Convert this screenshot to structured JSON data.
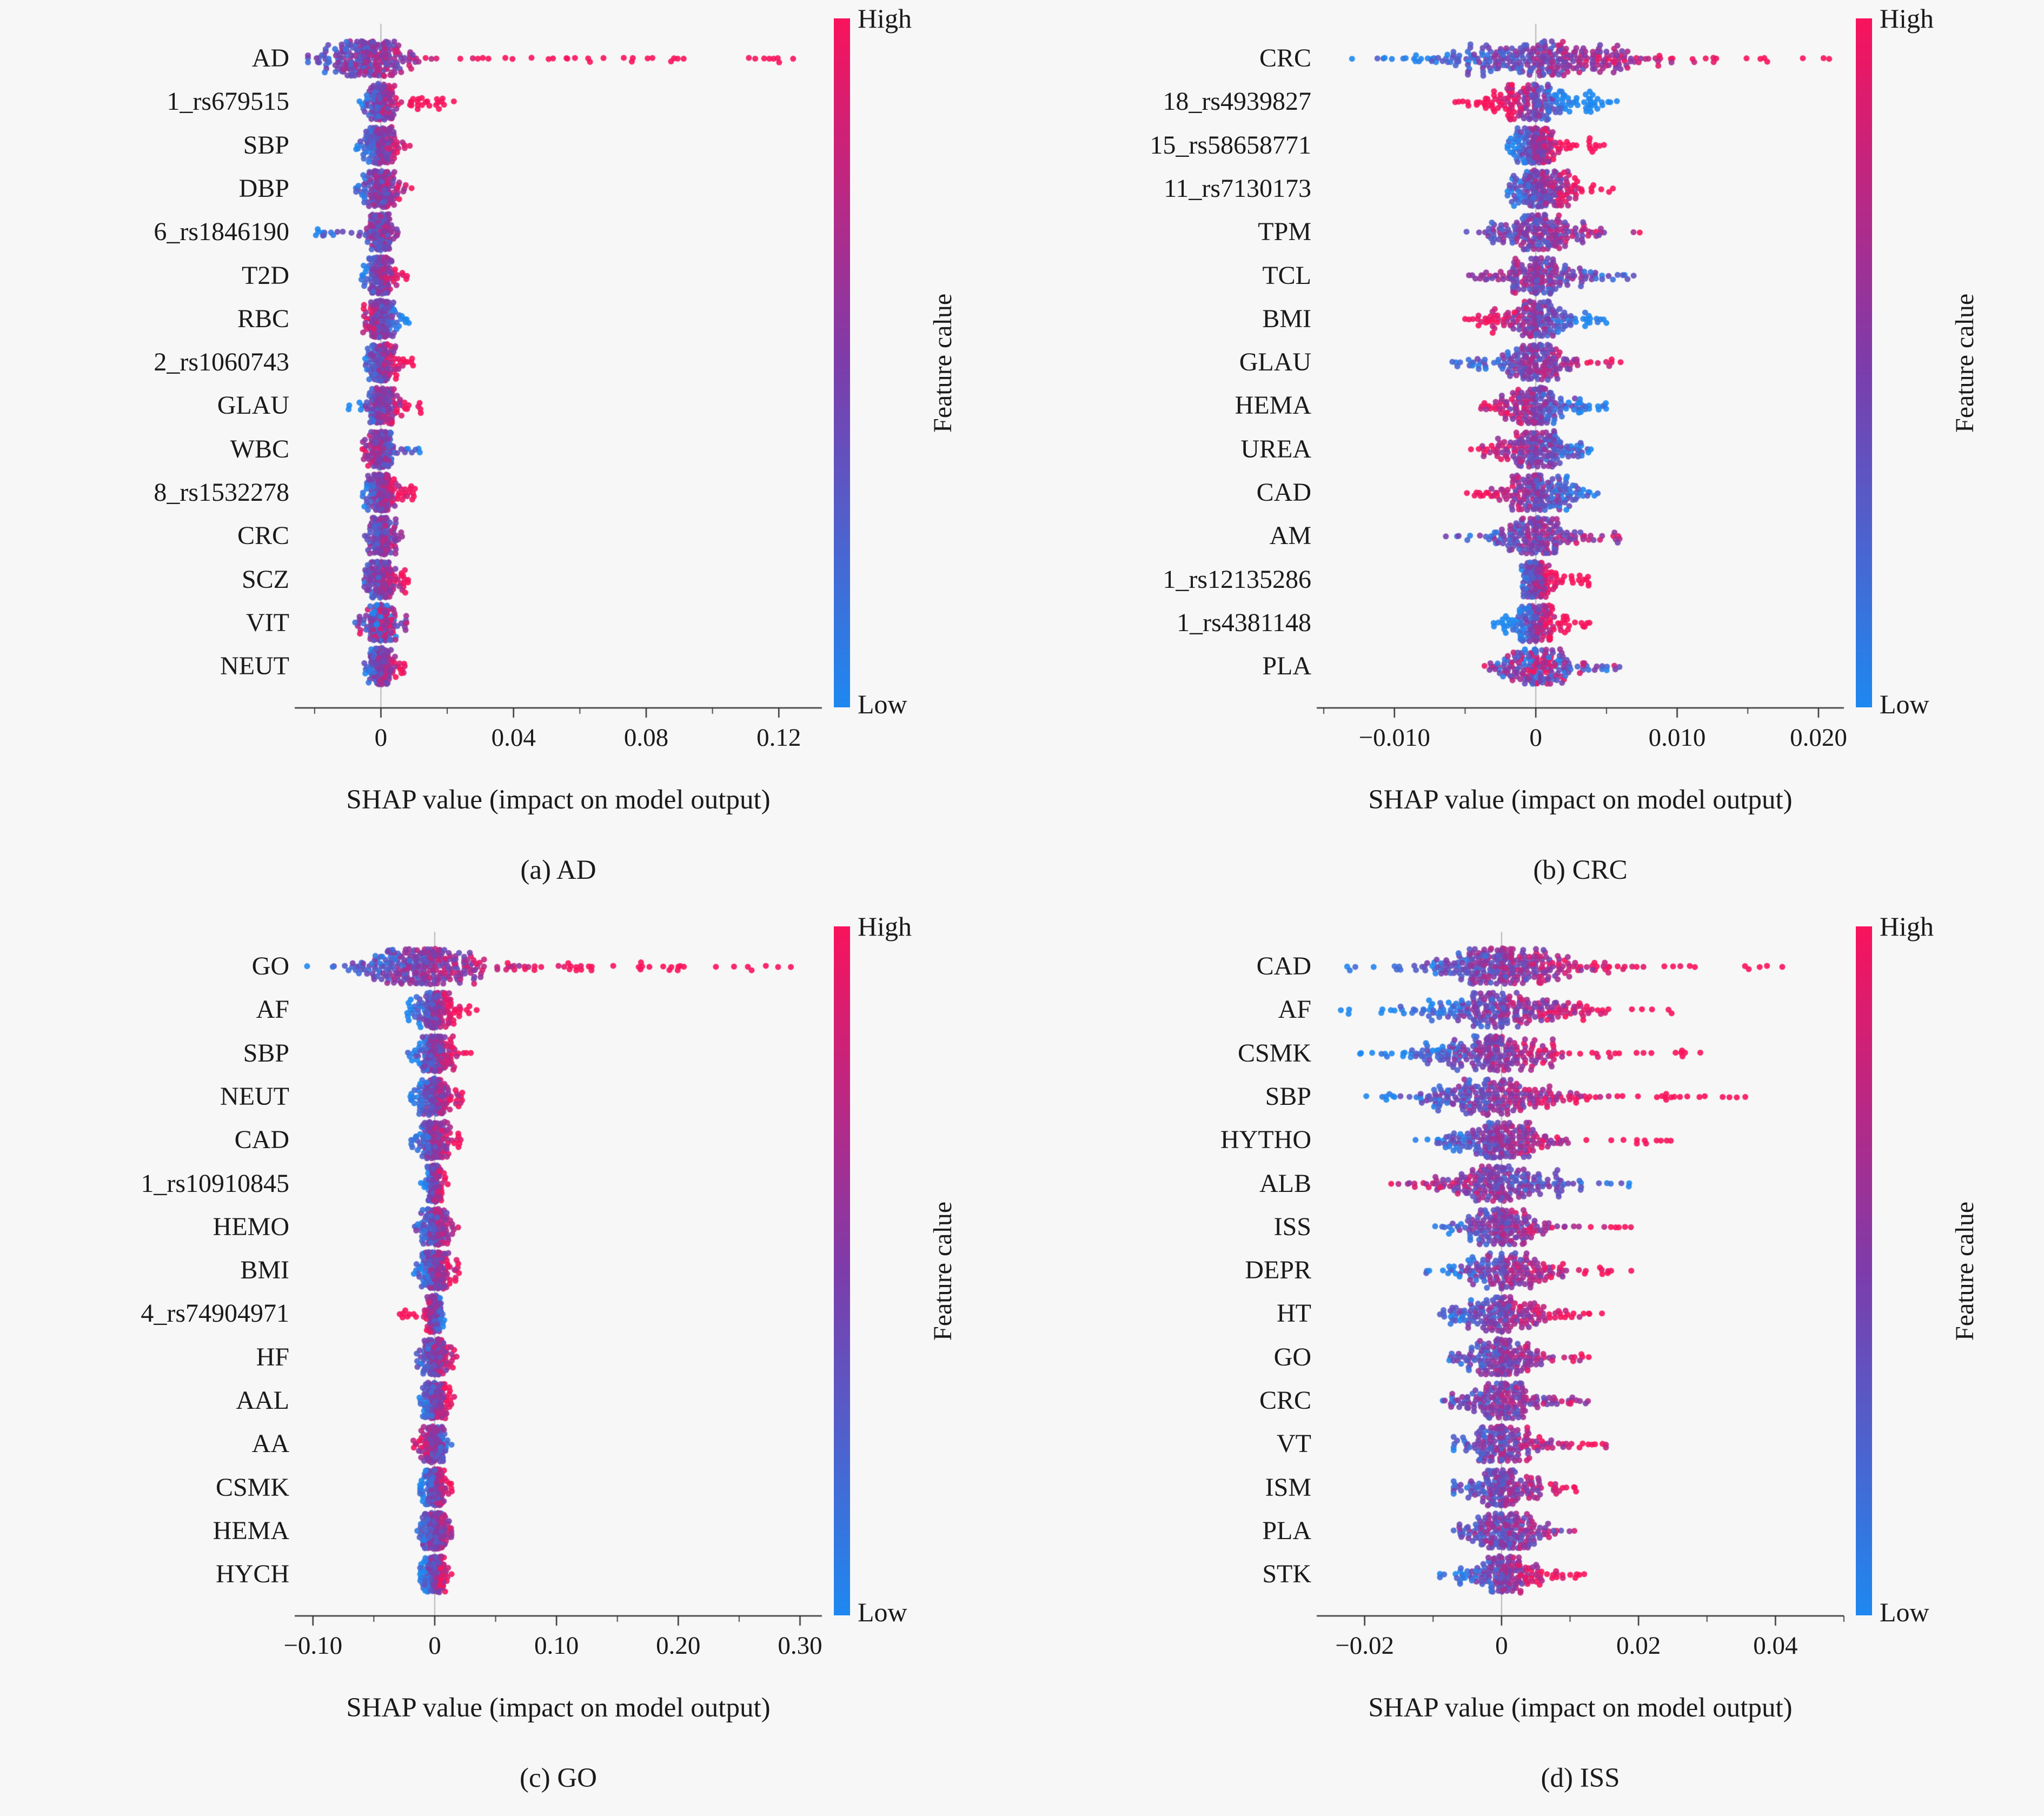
{
  "colors": {
    "high": "#f8135c",
    "mid": "#7d3caa",
    "low": "#1e88f0",
    "axis": "#333333",
    "zero_line": "#b5b5b5",
    "background": "#f7f7f7",
    "text": "#1a1a1a"
  },
  "chart_data": [
    {
      "id": "a",
      "type": "scatter",
      "variant": "shap-beeswarm-summary",
      "caption": "(a) AD",
      "xlabel": "SHAP value (impact on model output)",
      "xlim": [
        -0.026,
        0.133
      ],
      "minor_step": 0.02,
      "xticks": [
        {
          "v": 0,
          "label": "0"
        },
        {
          "v": 0.04,
          "label": "0.04"
        },
        {
          "v": 0.08,
          "label": "0.08"
        },
        {
          "v": 0.12,
          "label": "0.12"
        }
      ],
      "colorbar": {
        "high": "High",
        "low": "Low",
        "title": "Feature calue"
      },
      "features": [
        {
          "name": "AD",
          "lo": -0.022,
          "hi": 0.125,
          "mode": -0.005,
          "dense": 0.007,
          "corr": 1,
          "n": 290
        },
        {
          "name": "1_rs679515",
          "lo": -0.007,
          "hi": 0.022,
          "mode": 0,
          "dense": 0.002,
          "corr": 1,
          "n": 190
        },
        {
          "name": "SBP",
          "lo": -0.008,
          "hi": 0.009,
          "mode": 0,
          "dense": 0.0025,
          "corr": 0.4
        },
        {
          "name": "DBP",
          "lo": -0.008,
          "hi": 0.01,
          "mode": 0,
          "dense": 0.0025,
          "corr": 0.3
        },
        {
          "name": "6_rs1846190",
          "lo": -0.02,
          "hi": 0.008,
          "mode": 0,
          "dense": 0.002,
          "corr": 0.3
        },
        {
          "name": "T2D",
          "lo": -0.006,
          "hi": 0.008,
          "mode": 0,
          "dense": 0.002,
          "corr": 0.4
        },
        {
          "name": "RBC",
          "lo": -0.006,
          "hi": 0.009,
          "mode": 0,
          "dense": 0.002,
          "corr": -0.4
        },
        {
          "name": "2_rs1060743",
          "lo": -0.005,
          "hi": 0.01,
          "mode": 0,
          "dense": 0.002,
          "corr": 0.5
        },
        {
          "name": "GLAU",
          "lo": -0.01,
          "hi": 0.013,
          "mode": 0,
          "dense": 0.002,
          "corr": 0.5
        },
        {
          "name": "WBC",
          "lo": -0.006,
          "hi": 0.013,
          "mode": 0,
          "dense": 0.002,
          "corr": -0.4
        },
        {
          "name": "8_rs1532278",
          "lo": -0.006,
          "hi": 0.011,
          "mode": 0,
          "dense": 0.002,
          "corr": 0.5
        },
        {
          "name": "CRC",
          "lo": -0.005,
          "hi": 0.008,
          "mode": 0,
          "dense": 0.002,
          "corr": 0.2
        },
        {
          "name": "SCZ",
          "lo": -0.005,
          "hi": 0.01,
          "mode": 0,
          "dense": 0.002,
          "corr": 0.4
        },
        {
          "name": "VIT",
          "lo": -0.008,
          "hi": 0.008,
          "mode": 0,
          "dense": 0.002,
          "corr": 0
        },
        {
          "name": "NEUT",
          "lo": -0.005,
          "hi": 0.008,
          "mode": 0,
          "dense": 0.002,
          "corr": 0.4
        }
      ]
    },
    {
      "id": "b",
      "type": "scatter",
      "variant": "shap-beeswarm-summary",
      "caption": "(b) CRC",
      "xlabel": "SHAP value (impact on model output)",
      "xlim": [
        -0.0155,
        0.0218
      ],
      "minor_step": 0.005,
      "xticks": [
        {
          "v": -0.01,
          "label": "−0.010"
        },
        {
          "v": 0,
          "label": "0"
        },
        {
          "v": 0.01,
          "label": "0.010"
        },
        {
          "v": 0.02,
          "label": "0.020"
        }
      ],
      "colorbar": {
        "high": "High",
        "low": "Low",
        "title": "Feature calue"
      },
      "features": [
        {
          "name": "CRC",
          "lo": -0.013,
          "hi": 0.021,
          "mode": 0.0005,
          "dense": 0.004,
          "corr": 0.6,
          "n": 320
        },
        {
          "name": "18_rs4939827",
          "lo": -0.006,
          "hi": 0.006,
          "mode": 0,
          "dense": 0.002,
          "corr": -1,
          "n": 200
        },
        {
          "name": "15_rs58658771",
          "lo": -0.002,
          "hi": 0.005,
          "mode": 0,
          "dense": 0.0009,
          "corr": 1,
          "n": 190
        },
        {
          "name": "11_rs7130173",
          "lo": -0.002,
          "hi": 0.006,
          "mode": 0.0005,
          "dense": 0.0012,
          "corr": 0.6,
          "n": 200
        },
        {
          "name": "TPM",
          "lo": -0.005,
          "hi": 0.01,
          "mode": 0,
          "dense": 0.0018,
          "corr": 0.3
        },
        {
          "name": "TCL",
          "lo": -0.005,
          "hi": 0.007,
          "mode": 0,
          "dense": 0.0018,
          "corr": -0.2
        },
        {
          "name": "BMI",
          "lo": -0.005,
          "hi": 0.005,
          "mode": 0,
          "dense": 0.0018,
          "corr": -0.5
        },
        {
          "name": "GLAU",
          "lo": -0.006,
          "hi": 0.006,
          "mode": 0,
          "dense": 0.0018,
          "corr": 0.3
        },
        {
          "name": "HEMA",
          "lo": -0.004,
          "hi": 0.005,
          "mode": 0,
          "dense": 0.0016,
          "corr": -0.4
        },
        {
          "name": "UREA",
          "lo": -0.005,
          "hi": 0.004,
          "mode": 0,
          "dense": 0.0016,
          "corr": -0.4
        },
        {
          "name": "CAD",
          "lo": -0.005,
          "hi": 0.005,
          "mode": 0,
          "dense": 0.0018,
          "corr": -0.4
        },
        {
          "name": "AM",
          "lo": -0.007,
          "hi": 0.006,
          "mode": 0,
          "dense": 0.0018,
          "corr": 0.2
        },
        {
          "name": "1_rs12135286",
          "lo": -0.001,
          "hi": 0.004,
          "mode": 0,
          "dense": 0.0006,
          "corr": 1,
          "n": 160
        },
        {
          "name": "1_rs4381148",
          "lo": -0.003,
          "hi": 0.004,
          "mode": 0,
          "dense": 0.001,
          "corr": 1,
          "n": 160
        },
        {
          "name": "PLA",
          "lo": -0.004,
          "hi": 0.007,
          "mode": 0,
          "dense": 0.0015,
          "corr": 0
        }
      ]
    },
    {
      "id": "c",
      "type": "scatter",
      "variant": "shap-beeswarm-summary",
      "caption": "(c) GO",
      "xlabel": "SHAP value (impact on model output)",
      "xlim": [
        -0.115,
        0.318
      ],
      "minor_step": 0.05,
      "xticks": [
        {
          "v": -0.1,
          "label": "−0.10"
        },
        {
          "v": 0,
          "label": "0"
        },
        {
          "v": 0.1,
          "label": "0.10"
        },
        {
          "v": 0.2,
          "label": "0.20"
        },
        {
          "v": 0.3,
          "label": "0.30"
        }
      ],
      "colorbar": {
        "high": "High",
        "low": "Low",
        "title": "Feature calue"
      },
      "features": [
        {
          "name": "GO",
          "lo": -0.105,
          "hi": 0.3,
          "mode": -0.01,
          "dense": 0.025,
          "corr": 1,
          "n": 330
        },
        {
          "name": "AF",
          "lo": -0.025,
          "hi": 0.035,
          "mode": 0,
          "dense": 0.008,
          "corr": 0.7
        },
        {
          "name": "SBP",
          "lo": -0.022,
          "hi": 0.03,
          "mode": 0,
          "dense": 0.007,
          "corr": 0.5
        },
        {
          "name": "NEUT",
          "lo": -0.02,
          "hi": 0.025,
          "mode": 0,
          "dense": 0.007,
          "corr": 0.4
        },
        {
          "name": "CAD",
          "lo": -0.02,
          "hi": 0.022,
          "mode": 0,
          "dense": 0.006,
          "corr": 0.4
        },
        {
          "name": "1_rs10910845",
          "lo": -0.012,
          "hi": 0.012,
          "mode": 0,
          "dense": 0.003,
          "corr": 0.6,
          "n": 150
        },
        {
          "name": "HEMO",
          "lo": -0.018,
          "hi": 0.02,
          "mode": 0,
          "dense": 0.006,
          "corr": 0.2
        },
        {
          "name": "BMI",
          "lo": -0.018,
          "hi": 0.02,
          "mode": 0,
          "dense": 0.006,
          "corr": 0.4
        },
        {
          "name": "4_rs74904971",
          "lo": -0.03,
          "hi": 0.008,
          "mode": 0,
          "dense": 0.003,
          "corr": -1,
          "n": 160
        },
        {
          "name": "HF",
          "lo": -0.015,
          "hi": 0.018,
          "mode": 0,
          "dense": 0.005,
          "corr": 0.3
        },
        {
          "name": "AAL",
          "lo": -0.015,
          "hi": 0.018,
          "mode": 0,
          "dense": 0.005,
          "corr": 0.5
        },
        {
          "name": "AA",
          "lo": -0.018,
          "hi": 0.015,
          "mode": 0,
          "dense": 0.005,
          "corr": -0.3
        },
        {
          "name": "CSMK",
          "lo": -0.012,
          "hi": 0.015,
          "mode": 0,
          "dense": 0.005,
          "corr": 0.5
        },
        {
          "name": "HEMA",
          "lo": -0.015,
          "hi": 0.015,
          "mode": 0,
          "dense": 0.005,
          "corr": 0.2
        },
        {
          "name": "HYCH",
          "lo": -0.012,
          "hi": 0.015,
          "mode": 0,
          "dense": 0.005,
          "corr": 0.5
        }
      ]
    },
    {
      "id": "d",
      "type": "scatter",
      "variant": "shap-beeswarm-summary",
      "caption": "(d) ISS",
      "xlabel": "SHAP value (impact on model output)",
      "xlim": [
        -0.027,
        0.05
      ],
      "minor_step": 0.01,
      "xticks": [
        {
          "v": -0.02,
          "label": "−0.02"
        },
        {
          "v": 0,
          "label": "0"
        },
        {
          "v": 0.02,
          "label": "0.02"
        },
        {
          "v": 0.04,
          "label": "0.04"
        }
      ],
      "colorbar": {
        "high": "High",
        "low": "Low",
        "title": "Feature calue"
      },
      "features": [
        {
          "name": "CAD",
          "lo": -0.024,
          "hi": 0.047,
          "mode": 0,
          "dense": 0.006,
          "corr": 0.8,
          "n": 310
        },
        {
          "name": "AF",
          "lo": -0.024,
          "hi": 0.026,
          "mode": 0,
          "dense": 0.006,
          "corr": 0.6,
          "n": 260
        },
        {
          "name": "CSMK",
          "lo": -0.021,
          "hi": 0.03,
          "mode": -0.002,
          "dense": 0.006,
          "corr": 0.8,
          "n": 250
        },
        {
          "name": "SBP",
          "lo": -0.02,
          "hi": 0.036,
          "mode": -0.002,
          "dense": 0.006,
          "corr": 0.8,
          "n": 250
        },
        {
          "name": "HYTHO",
          "lo": -0.013,
          "hi": 0.025,
          "mode": 0,
          "dense": 0.004,
          "corr": 0.7,
          "n": 220
        },
        {
          "name": "ALB",
          "lo": -0.018,
          "hi": 0.021,
          "mode": 0,
          "dense": 0.005,
          "corr": -0.3,
          "n": 220
        },
        {
          "name": "ISS",
          "lo": -0.011,
          "hi": 0.021,
          "mode": 0,
          "dense": 0.004,
          "corr": 0.5
        },
        {
          "name": "DEPR",
          "lo": -0.011,
          "hi": 0.02,
          "mode": 0,
          "dense": 0.004,
          "corr": 0.5
        },
        {
          "name": "HT",
          "lo": -0.009,
          "hi": 0.016,
          "mode": 0,
          "dense": 0.0035,
          "corr": 0.5
        },
        {
          "name": "GO",
          "lo": -0.009,
          "hi": 0.013,
          "mode": 0,
          "dense": 0.0035,
          "corr": 0.3
        },
        {
          "name": "CRC",
          "lo": -0.009,
          "hi": 0.013,
          "mode": 0,
          "dense": 0.0035,
          "corr": 0.2
        },
        {
          "name": "VT",
          "lo": -0.007,
          "hi": 0.016,
          "mode": 0,
          "dense": 0.003,
          "corr": 0.4
        },
        {
          "name": "ISM",
          "lo": -0.007,
          "hi": 0.011,
          "mode": 0,
          "dense": 0.003,
          "corr": 0.3
        },
        {
          "name": "PLA",
          "lo": -0.007,
          "hi": 0.011,
          "mode": 0,
          "dense": 0.003,
          "corr": 0.1
        },
        {
          "name": "STK",
          "lo": -0.009,
          "hi": 0.013,
          "mode": 0,
          "dense": 0.0035,
          "corr": 0.6
        }
      ]
    }
  ]
}
